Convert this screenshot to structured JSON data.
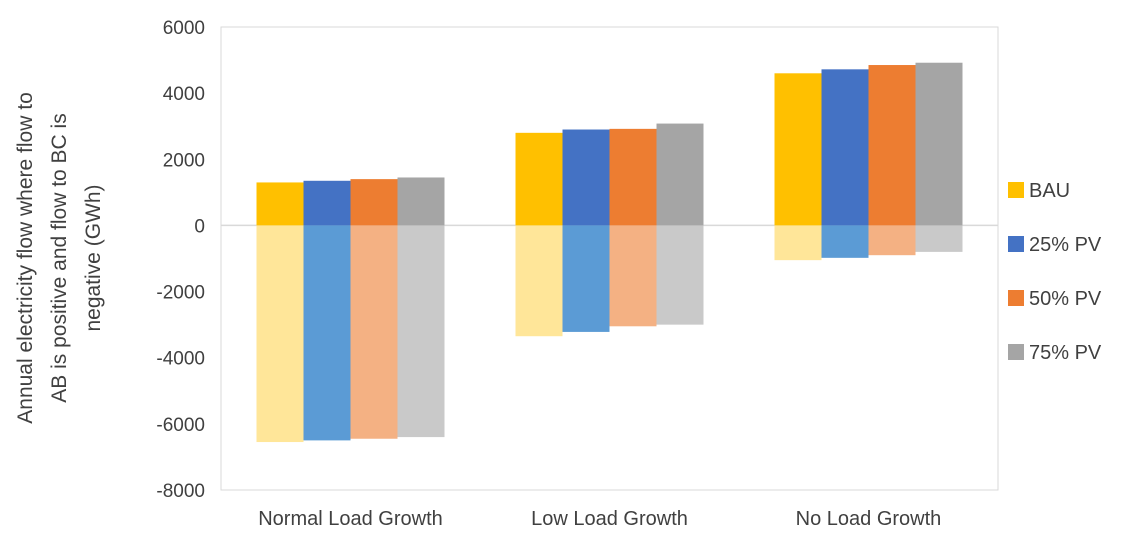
{
  "chart_data": {
    "type": "bar",
    "categories": [
      "Normal Load Growth",
      "Low Load Growth",
      "No Load Growth"
    ],
    "ylabel_lines": [
      "Annual electricity flow where flow to",
      "AB is positive and flow to BC is",
      "negative  (GWh)"
    ],
    "ylim": [
      -8000,
      6000
    ],
    "yticks": [
      6000,
      4000,
      2000,
      0,
      -2000,
      -4000,
      -6000,
      -8000
    ],
    "legend_position": "right",
    "grid": false,
    "series": [
      {
        "name": "BAU",
        "color": "#FFC000",
        "neg_color": "#FFE699",
        "positive": [
          1300,
          2800,
          4600
        ],
        "negative": [
          -6550,
          -3350,
          -1050
        ]
      },
      {
        "name": "25% PV",
        "color": "#4472C4",
        "neg_color": "#5B9BD5",
        "positive": [
          1350,
          2900,
          4720
        ],
        "negative": [
          -6500,
          -3220,
          -980
        ]
      },
      {
        "name": "50% PV",
        "color": "#ED7D31",
        "neg_color": "#F4B183",
        "positive": [
          1400,
          2920,
          4850
        ],
        "negative": [
          -6450,
          -3050,
          -900
        ]
      },
      {
        "name": "75% PV",
        "color": "#A5A5A5",
        "neg_color": "#C9C9C9",
        "positive": [
          1450,
          3080,
          4920
        ],
        "negative": [
          -6400,
          -3000,
          -800
        ]
      }
    ]
  }
}
